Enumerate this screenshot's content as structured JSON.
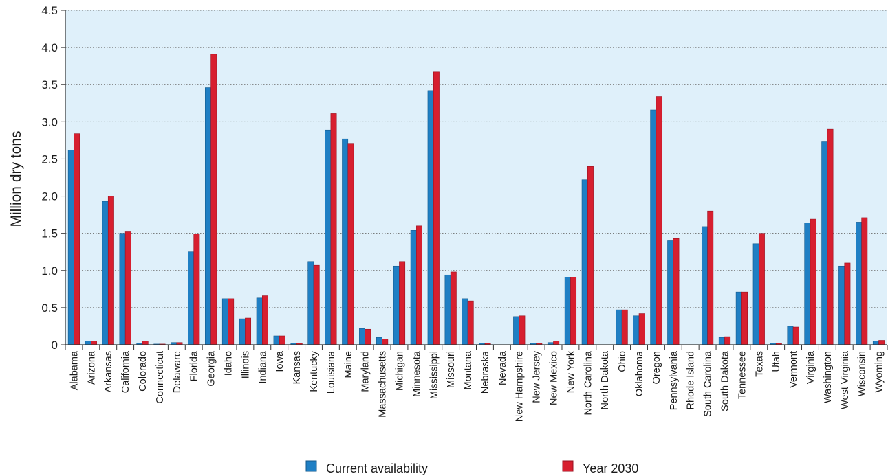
{
  "chart_data": {
    "type": "bar",
    "title": "",
    "xlabel": "",
    "ylabel": "Million dry tons",
    "ylim": [
      0,
      4.5
    ],
    "yticks": [
      0,
      0.5,
      1.0,
      1.5,
      2.0,
      2.5,
      3.0,
      3.5,
      4.0,
      4.5
    ],
    "ytick_labels": [
      "0",
      "0.5",
      "1.0",
      "1.5",
      "2.0",
      "2.5",
      "3.0",
      "3.5",
      "4.0",
      "4.5"
    ],
    "grid": true,
    "legend_position": "bottom",
    "categories": [
      "Alabama",
      "Arizona",
      "Arkansas",
      "California",
      "Colorado",
      "Connecticut",
      "Delaware",
      "Florida",
      "Georgia",
      "Idaho",
      "Illinois",
      "Indiana",
      "Iowa",
      "Kansas",
      "Kentucky",
      "Louisiana",
      "Maine",
      "Maryland",
      "Massachusetts",
      "Michigan",
      "Minnesota",
      "Mississippi",
      "Missouri",
      "Montana",
      "Nebraska",
      "Nevada",
      "New Hampshire",
      "New Jersey",
      "New Mexico",
      "New York",
      "North Carolina",
      "North Dakota",
      "Ohio",
      "Oklahoma",
      "Oregon",
      "Pennsylvania",
      "Rhode Island",
      "South Carolina",
      "South Dakota",
      "Tennessee",
      "Texas",
      "Utah",
      "Vermont",
      "Virginia",
      "Washington",
      "West Virginia",
      "Wisconsin",
      "Wyoming"
    ],
    "series": [
      {
        "name": "Current availability",
        "color": "#1f7fc4",
        "values": [
          2.62,
          0.05,
          1.93,
          1.5,
          0.02,
          0.01,
          0.03,
          1.25,
          3.46,
          0.62,
          0.35,
          0.63,
          0.12,
          0.02,
          1.12,
          2.89,
          2.77,
          0.22,
          0.1,
          1.06,
          1.54,
          3.42,
          0.94,
          0.62,
          0.02,
          0.0,
          0.38,
          0.02,
          0.03,
          0.91,
          2.22,
          0.0,
          0.47,
          0.39,
          3.16,
          1.4,
          0.0,
          1.59,
          0.1,
          0.71,
          1.36,
          0.02,
          0.25,
          1.64,
          2.73,
          1.06,
          1.65,
          0.05
        ]
      },
      {
        "name": "Year 2030",
        "color": "#d71f2f",
        "values": [
          2.84,
          0.05,
          2.0,
          1.52,
          0.05,
          0.01,
          0.03,
          1.49,
          3.91,
          0.62,
          0.36,
          0.66,
          0.12,
          0.02,
          1.07,
          3.11,
          2.71,
          0.21,
          0.08,
          1.12,
          1.6,
          3.67,
          0.98,
          0.59,
          0.02,
          0.0,
          0.39,
          0.02,
          0.05,
          0.91,
          2.4,
          0.0,
          0.47,
          0.42,
          3.34,
          1.43,
          0.0,
          1.8,
          0.11,
          0.71,
          1.5,
          0.02,
          0.24,
          1.69,
          2.9,
          1.1,
          1.71,
          0.06
        ]
      }
    ]
  }
}
